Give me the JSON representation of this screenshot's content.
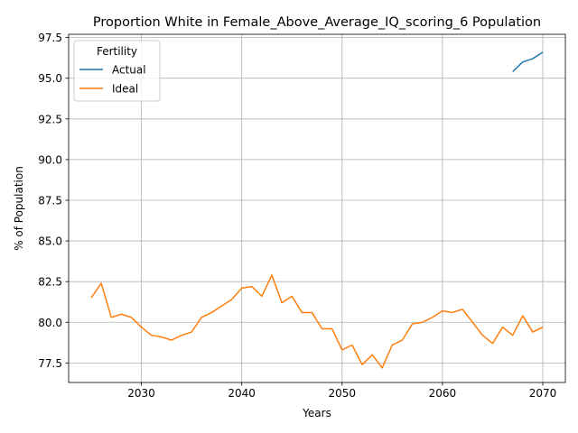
{
  "chart_data": {
    "type": "line",
    "title": "Proportion White in Female_Above_Average_IQ_scoring_6 Population",
    "xlabel": "Years",
    "ylabel": "% of Population",
    "xlim": [
      2022.75,
      2072.25
    ],
    "ylim": [
      76.3,
      97.7
    ],
    "xticks": [
      2030,
      2040,
      2050,
      2060,
      2070
    ],
    "yticks": [
      77.5,
      80.0,
      82.5,
      85.0,
      87.5,
      90.0,
      92.5,
      95.0,
      97.5
    ],
    "ytick_labels": [
      "77.5",
      "80.0",
      "82.5",
      "85.0",
      "87.5",
      "90.0",
      "92.5",
      "95.0",
      "97.5"
    ],
    "grid": true,
    "legend": {
      "title": "Fertility",
      "placement": "top-left"
    },
    "series": [
      {
        "name": "Actual",
        "color": "#1f77b4",
        "x": [
          2067,
          2068,
          2069,
          2070
        ],
        "y": [
          95.4,
          96.0,
          96.2,
          96.6
        ]
      },
      {
        "name": "Ideal",
        "color": "#ff7f0e",
        "x": [
          2025,
          2026,
          2027,
          2028,
          2029,
          2030,
          2031,
          2032,
          2033,
          2034,
          2035,
          2036,
          2037,
          2038,
          2039,
          2040,
          2041,
          2042,
          2043,
          2044,
          2045,
          2046,
          2047,
          2048,
          2049,
          2050,
          2051,
          2052,
          2053,
          2054,
          2055,
          2056,
          2057,
          2058,
          2059,
          2060,
          2061,
          2062,
          2063,
          2064,
          2065,
          2066,
          2067,
          2068,
          2069,
          2070
        ],
        "y": [
          81.5,
          82.4,
          80.3,
          80.5,
          80.3,
          79.7,
          79.2,
          79.1,
          78.9,
          79.2,
          79.4,
          80.3,
          80.6,
          81.0,
          81.4,
          82.1,
          82.2,
          81.6,
          82.9,
          81.2,
          81.6,
          80.6,
          80.6,
          79.6,
          79.6,
          78.3,
          78.6,
          77.4,
          78.0,
          77.2,
          78.6,
          78.9,
          79.9,
          80.0,
          80.3,
          80.7,
          80.6,
          80.8,
          80.0,
          79.2,
          78.7,
          79.7,
          79.2,
          80.4,
          79.4,
          79.7
        ]
      }
    ]
  }
}
